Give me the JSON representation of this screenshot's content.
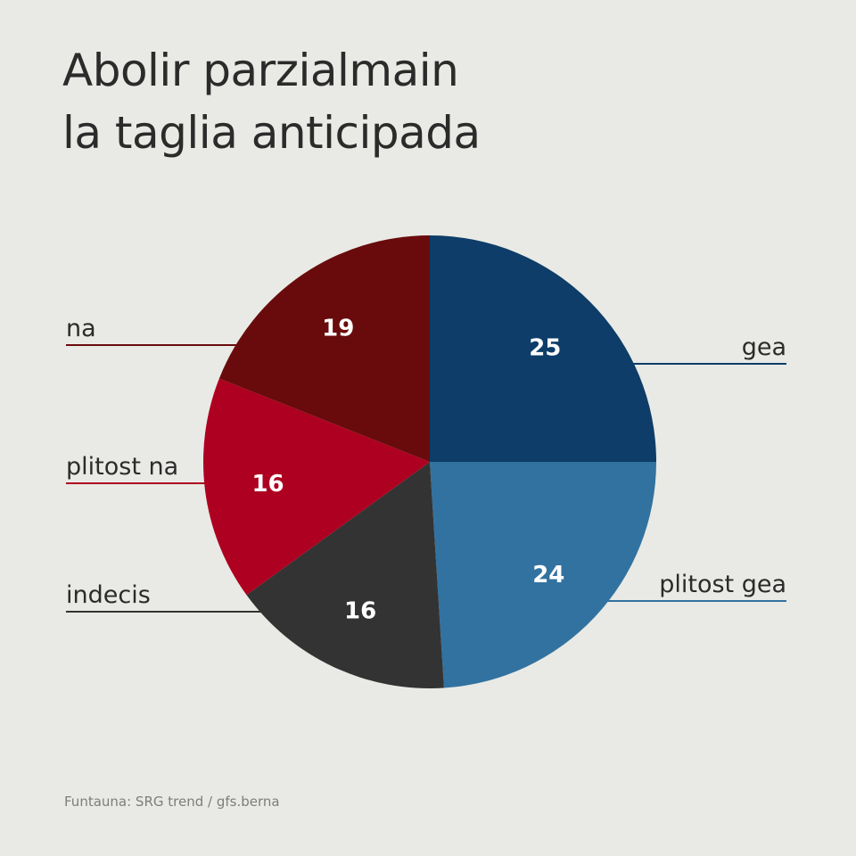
{
  "title_lines": [
    "Abolir parzialmain",
    "la taglia anticipada"
  ],
  "source": "Funtauna: SRG trend / gfs.berna",
  "chart_data": {
    "type": "pie",
    "title": "Abolir parzialmain la taglia anticipada",
    "slices": [
      {
        "label": "gea",
        "value": 25,
        "color": "#0d3d68"
      },
      {
        "label": "plitost gea",
        "value": 24,
        "color": "#3272a0"
      },
      {
        "label": "indecis",
        "value": 16,
        "color": "#333333"
      },
      {
        "label": "plitost na",
        "value": 16,
        "color": "#ae0020"
      },
      {
        "label": "na",
        "value": 19,
        "color": "#690b0c"
      }
    ],
    "start": "12 o'clock",
    "direction": "clockwise",
    "legend_placement": "labels beside slices with leader lines"
  }
}
